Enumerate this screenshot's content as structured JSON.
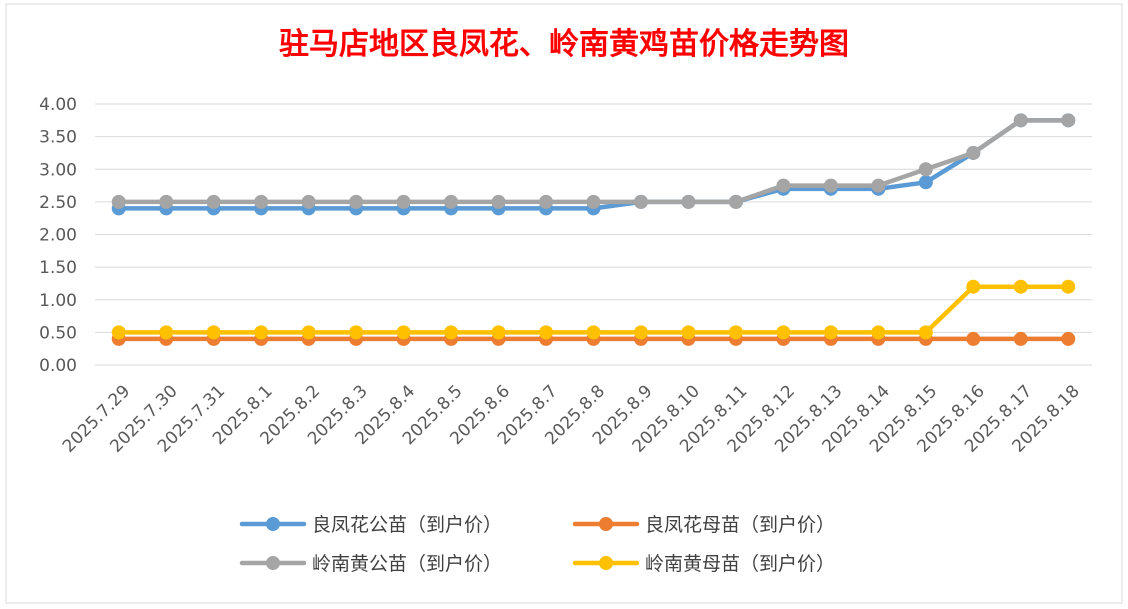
{
  "chart_data": {
    "type": "line",
    "title": "驻马店地区良凤花、岭南黄鸡苗价格走势图",
    "xlabel": "",
    "ylabel": "",
    "ylim": [
      0,
      4
    ],
    "yticks": [
      "0.00",
      "0.50",
      "1.00",
      "1.50",
      "2.00",
      "2.50",
      "3.00",
      "3.50",
      "4.00"
    ],
    "grid": "horizontal",
    "legend_position": "bottom",
    "x": [
      "2025.7.29",
      "2025.7.30",
      "2025.7.31",
      "2025.8.1",
      "2025.8.2",
      "2025.8.3",
      "2025.8.4",
      "2025.8.5",
      "2025.8.6",
      "2025.8.7",
      "2025.8.8",
      "2025.8.9",
      "2025.8.10",
      "2025.8.11",
      "2025.8.12",
      "2025.8.13",
      "2025.8.14",
      "2025.8.15",
      "2025.8.16",
      "2025.8.17",
      "2025.8.18"
    ],
    "series": [
      {
        "name": "良凤花公苗（到户价）",
        "color": "#5b9bd5",
        "values": [
          2.4,
          2.4,
          2.4,
          2.4,
          2.4,
          2.4,
          2.4,
          2.4,
          2.4,
          2.4,
          2.4,
          2.5,
          2.5,
          2.5,
          2.7,
          2.7,
          2.7,
          2.8,
          3.25,
          3.75,
          3.75
        ]
      },
      {
        "name": "良凤花母苗（到户价）",
        "color": "#ed7d31",
        "values": [
          0.4,
          0.4,
          0.4,
          0.4,
          0.4,
          0.4,
          0.4,
          0.4,
          0.4,
          0.4,
          0.4,
          0.4,
          0.4,
          0.4,
          0.4,
          0.4,
          0.4,
          0.4,
          0.4,
          0.4,
          0.4
        ]
      },
      {
        "name": "岭南黄公苗（到户价）",
        "color": "#a5a5a5",
        "values": [
          2.5,
          2.5,
          2.5,
          2.5,
          2.5,
          2.5,
          2.5,
          2.5,
          2.5,
          2.5,
          2.5,
          2.5,
          2.5,
          2.5,
          2.75,
          2.75,
          2.75,
          3.0,
          3.25,
          3.75,
          3.75
        ]
      },
      {
        "name": "岭南黄母苗（到户价）",
        "color": "#ffc000",
        "values": [
          0.5,
          0.5,
          0.5,
          0.5,
          0.5,
          0.5,
          0.5,
          0.5,
          0.5,
          0.5,
          0.5,
          0.5,
          0.5,
          0.5,
          0.5,
          0.5,
          0.5,
          0.5,
          1.2,
          1.2,
          1.2
        ]
      }
    ]
  }
}
